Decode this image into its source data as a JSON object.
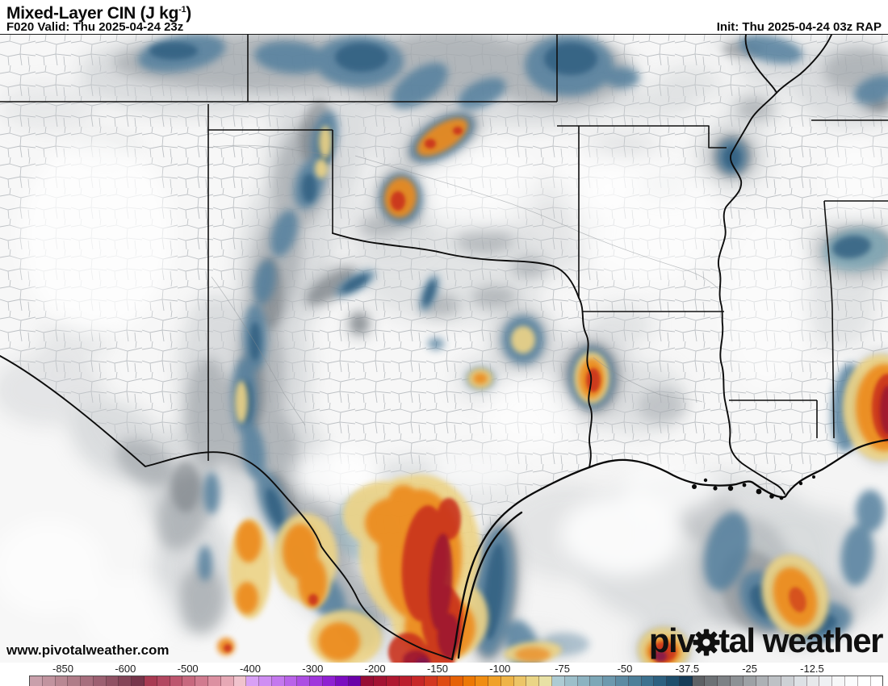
{
  "header": {
    "title_main": "Mixed-Layer CIN (J kg",
    "title_exponent": "-1",
    "title_suffix": ")",
    "valid_label": "F020 Valid: Thu 2025-04-24 23z",
    "init_label": "Init: Thu 2025-04-24 03z RAP"
  },
  "branding": {
    "watermark": "www.pivotalweather.com",
    "logo_left": "piv",
    "logo_right": "tal weather",
    "logo_color": "#101010"
  },
  "map": {
    "description": "Mixed-layer convective inhibition filled-contour forecast map over the south-central United States (Texas, Oklahoma, New Mexico, Kansas, Missouri, Arkansas, Louisiana, Mississippi) and adjacent Gulf of Mexico",
    "accent_colors": {
      "weak_gray": "#9aa0a6",
      "moderate_blue": "#3f7296",
      "strong_yellow": "#ecd386",
      "stronger_orange": "#ec8a1e",
      "intense_red": "#c9301b",
      "extreme_darkred": "#9a1430"
    }
  },
  "colorbar": {
    "tick_labels": [
      "-850",
      "-600",
      "-500",
      "-400",
      "-300",
      "-200",
      "-150",
      "-100",
      "-75",
      "-50",
      "-37.5",
      "-25",
      "-12.5"
    ],
    "cells": [
      "#c9a0ab",
      "#c1949f",
      "#b98893",
      "#b07c88",
      "#a76e7d",
      "#9c6071",
      "#905264",
      "#844457",
      "#76354a",
      "#a83a52",
      "#b24760",
      "#bd566e",
      "#c7687e",
      "#d17b8f",
      "#dc90a1",
      "#e6a8b5",
      "#f0c3cd",
      "#d9a0f5",
      "#cf8df2",
      "#c478ee",
      "#b963e9",
      "#ad4de3",
      "#a036dc",
      "#8f20d2",
      "#7b0cc0",
      "#6a00a8",
      "#970d34",
      "#a31232",
      "#af1830",
      "#bb1e2d",
      "#c72727",
      "#d33720",
      "#df4b12",
      "#e66106",
      "#ec7804",
      "#f08d12",
      "#f0a128",
      "#eeb447",
      "#ecc567",
      "#ead586",
      "#e8e1a5",
      "#adcbd3",
      "#9dbfca",
      "#8db3c1",
      "#7da7b7",
      "#6d99ae",
      "#5d8ba3",
      "#4d7f99",
      "#3d718f",
      "#2d6080",
      "#1f4e6c",
      "#163c58",
      "#5d6165",
      "#6d7175",
      "#7d8185",
      "#8d9195",
      "#9da1a5",
      "#adb1b5",
      "#bdc1c5",
      "#cdd1d5",
      "#dde1e5",
      "#e7e9eb",
      "#eff1f3",
      "#f6f7f8",
      "#fbfcfd",
      "#feffff",
      "#ffffff"
    ]
  }
}
